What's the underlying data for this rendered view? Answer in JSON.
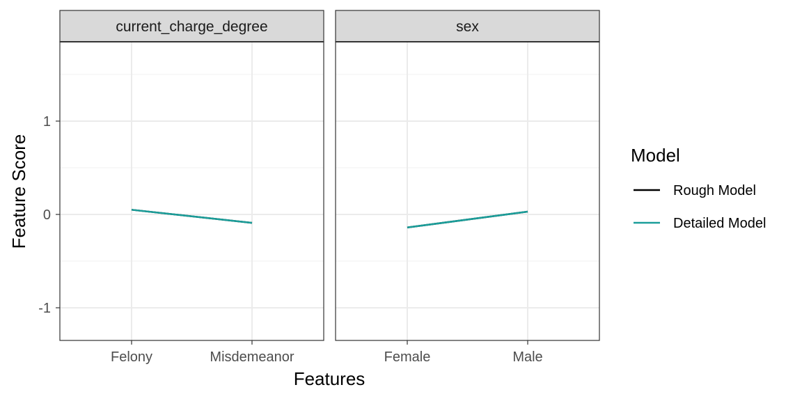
{
  "chart_data": {
    "type": "line",
    "xlabel": "Features",
    "ylabel": "Feature Score",
    "ylim": [
      -1.35,
      1.85
    ],
    "yticks": [
      -1,
      0,
      1
    ],
    "ytick_labels": [
      "-1",
      "0",
      "1"
    ],
    "grid": true,
    "legend": {
      "title": "Model",
      "placement": "right",
      "entries": [
        {
          "name": "Rough Model",
          "color": "#000000"
        },
        {
          "name": "Detailed Model",
          "color": "#1a9e9a"
        }
      ]
    },
    "facets": [
      {
        "strip": "current_charge_degree",
        "categories": [
          "Felony",
          "Misdemeanor"
        ],
        "series": [
          {
            "name": "Rough Model",
            "values": [
              0.05,
              -0.09
            ]
          },
          {
            "name": "Detailed Model",
            "values": [
              0.05,
              -0.09
            ]
          }
        ]
      },
      {
        "strip": "sex",
        "categories": [
          "Female",
          "Male"
        ],
        "series": [
          {
            "name": "Rough Model",
            "values": [
              -0.14,
              0.03
            ]
          },
          {
            "name": "Detailed Model",
            "values": [
              -0.14,
              0.03
            ]
          }
        ]
      }
    ]
  }
}
